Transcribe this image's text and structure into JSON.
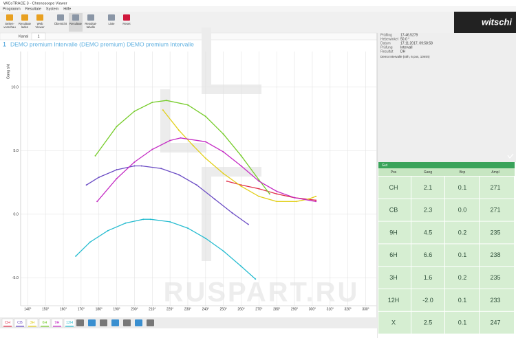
{
  "window": {
    "title": "WiCoTRACE 3 - Chronoscope Viewer",
    "menu": [
      "Programm",
      "Resultate",
      "System",
      "Hilfe"
    ],
    "toolbar": [
      [
        "Seiten-",
        "vorschau"
      ],
      [
        "Resultate",
        "laden"
      ],
      [
        "Web",
        "Viewer"
      ],
      [
        "Übersicht"
      ],
      [
        "Resultate"
      ],
      [
        "Resultat-",
        "tabelle"
      ],
      [
        "Liste"
      ],
      [
        "Reset"
      ]
    ],
    "brand": "witschi"
  },
  "tabs": [
    "Kanal",
    "1"
  ],
  "chart_data": {
    "type": "line",
    "number": "1",
    "title": "DEMO premium Intervalle (DEMO premium) DEMO premium Intervalle",
    "y_label": "Gang  s/d",
    "watermark": "RUSPART.RU",
    "xlim": [
      136,
      336
    ],
    "ylim": [
      -7.2,
      12.8
    ],
    "grid": true,
    "xticks": [
      {
        "value": 140,
        "label": "140°"
      },
      {
        "value": 150,
        "label": "150°"
      },
      {
        "value": 160,
        "label": "160°"
      },
      {
        "value": 170,
        "label": "170°"
      },
      {
        "value": 180,
        "label": "180°"
      },
      {
        "value": 190,
        "label": "190°"
      },
      {
        "value": 200,
        "label": "200°"
      },
      {
        "value": 210,
        "label": "210°"
      },
      {
        "value": 220,
        "label": "220°"
      },
      {
        "value": 230,
        "label": "230°"
      },
      {
        "value": 240,
        "label": "240°"
      },
      {
        "value": 250,
        "label": "250°"
      },
      {
        "value": 260,
        "label": "260°"
      },
      {
        "value": 270,
        "label": "270°"
      },
      {
        "value": 280,
        "label": "280°"
      },
      {
        "value": 290,
        "label": "290°"
      },
      {
        "value": 300,
        "label": "300°"
      },
      {
        "value": 310,
        "label": "310°"
      },
      {
        "value": 320,
        "label": "320°"
      },
      {
        "value": 330,
        "label": "330°"
      }
    ],
    "yticks": [
      {
        "value": -5,
        "label": "-5.0"
      },
      {
        "value": 0,
        "label": "0.0"
      },
      {
        "value": 5,
        "label": "5.0"
      },
      {
        "value": 10,
        "label": "10.0"
      }
    ],
    "series": [
      {
        "name": "CH",
        "color": "#e0304a",
        "x": [
          252,
          260,
          270,
          280,
          290,
          302
        ],
        "values": [
          2.6,
          2.3,
          2.0,
          1.6,
          1.3,
          1.1
        ]
      },
      {
        "name": "CB",
        "color": "#6a4bc4",
        "x": [
          173,
          180,
          190,
          200,
          204,
          215,
          225,
          235,
          245,
          255,
          264
        ],
        "values": [
          2.3,
          2.9,
          3.5,
          3.8,
          3.8,
          3.6,
          3.1,
          2.3,
          1.2,
          0.1,
          -0.8
        ]
      },
      {
        "name": "3H",
        "color": "#e2cf1a",
        "x": [
          216,
          225,
          233,
          240,
          250,
          260,
          270,
          280,
          291,
          298,
          302
        ],
        "values": [
          8.2,
          6.6,
          5.4,
          4.4,
          3.2,
          2.2,
          1.4,
          1.0,
          1.0,
          1.2,
          1.4
        ]
      },
      {
        "name": "6H",
        "color": "#76cc2a",
        "x": [
          178,
          190,
          200,
          210,
          218,
          230,
          240,
          250,
          260,
          270,
          276
        ],
        "values": [
          4.6,
          6.9,
          8.1,
          8.8,
          8.95,
          8.6,
          7.7,
          6.3,
          4.6,
          2.7,
          1.6
        ]
      },
      {
        "name": "9H",
        "color": "#c42cc4",
        "x": [
          179,
          190,
          200,
          210,
          220,
          226,
          240,
          250,
          260,
          270,
          280,
          290,
          302
        ],
        "values": [
          1.0,
          2.8,
          4.1,
          5.1,
          5.8,
          6.0,
          5.7,
          4.9,
          3.8,
          2.6,
          1.8,
          1.3,
          1.0
        ]
      },
      {
        "name": "12H",
        "color": "#26bcd0",
        "x": [
          167,
          175,
          185,
          195,
          205,
          209,
          220,
          230,
          240,
          250,
          260,
          268
        ],
        "values": [
          -3.3,
          -2.2,
          -1.3,
          -0.7,
          -0.4,
          -0.4,
          -0.6,
          -1.1,
          -1.9,
          -2.9,
          -4.1,
          -5.1
        ]
      }
    ]
  },
  "info": {
    "rows": [
      [
        "Prüfling",
        "17-46.5279"
      ],
      [
        "Hebewinkel",
        "50.0 °"
      ],
      [
        "Datum",
        "17.11.2017, 09:58:58"
      ],
      [
        "Prüfung",
        "Intervall"
      ],
      [
        "Resultat",
        "DH"
      ]
    ],
    "note": "Demo Intervalle (40h, 6 pos, 10min)"
  },
  "table": {
    "status": "Gut",
    "header": [
      "Pos",
      "Gang",
      "Bcp",
      "Ampl"
    ],
    "rows": [
      [
        "CH",
        "2.1",
        "0.1",
        "271"
      ],
      [
        "CB",
        "2.3",
        "0.0",
        "271"
      ],
      [
        "9H",
        "4.5",
        "0.2",
        "235"
      ],
      [
        "6H",
        "6.6",
        "0.1",
        "238"
      ],
      [
        "3H",
        "1.6",
        "0.2",
        "235"
      ],
      [
        "12H",
        "-2.0",
        "0.1",
        "233"
      ],
      [
        "X",
        "2.5",
        "0.1",
        "247"
      ]
    ]
  }
}
